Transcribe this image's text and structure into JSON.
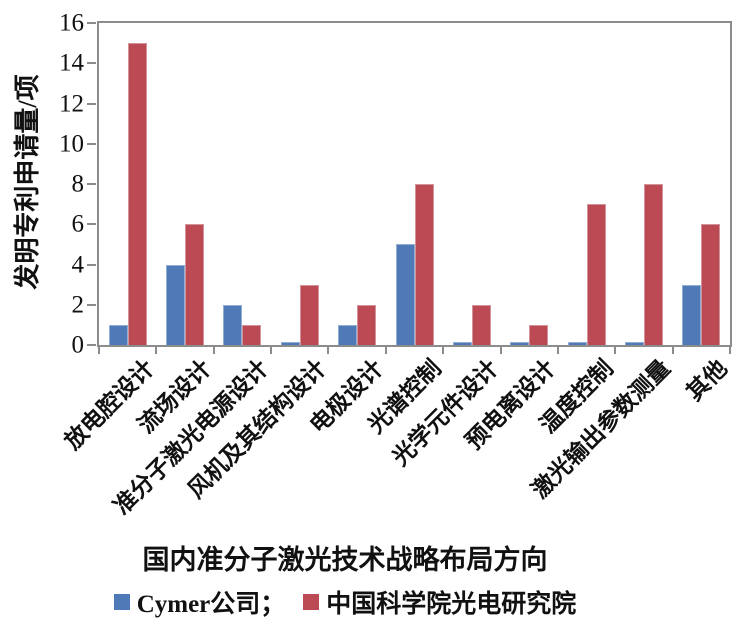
{
  "chart_data": {
    "type": "bar",
    "title": "",
    "xlabel": "国内准分子激光技术战略布局方向",
    "ylabel": "发明专利申请量/项",
    "ylim": [
      0,
      16
    ],
    "yticks": [
      0,
      2,
      4,
      6,
      8,
      10,
      12,
      14,
      16
    ],
    "grid": false,
    "legend_position": "bottom",
    "categories": [
      "放电腔设计",
      "流场设计",
      "准分子激光电源设计",
      "风机及其结构设计",
      "电极设计",
      "光谱控制",
      "光学元件设计",
      "预电离设计",
      "温度控制",
      "激光输出参数测量",
      "其他"
    ],
    "series": [
      {
        "name": "Cymer公司",
        "color": "#4f7ab7",
        "edge_color": "#93aed3",
        "values": [
          1,
          4,
          2,
          0,
          1,
          5,
          0,
          0,
          0,
          0,
          3
        ]
      },
      {
        "name": "中国科学院光电研究院",
        "color": "#bb4a55",
        "edge_color": "#d2949b",
        "values": [
          15,
          6,
          1,
          3,
          2,
          8,
          2,
          1,
          7,
          8,
          6
        ]
      }
    ]
  },
  "legend": {
    "items": [
      {
        "label": "Cymer公司；",
        "color": "#4f7ab7"
      },
      {
        "label": "中国科学院光电研究院",
        "color": "#bb4a55"
      }
    ]
  },
  "colors": {
    "axis": "#8c8c8c",
    "text": "#111111"
  }
}
